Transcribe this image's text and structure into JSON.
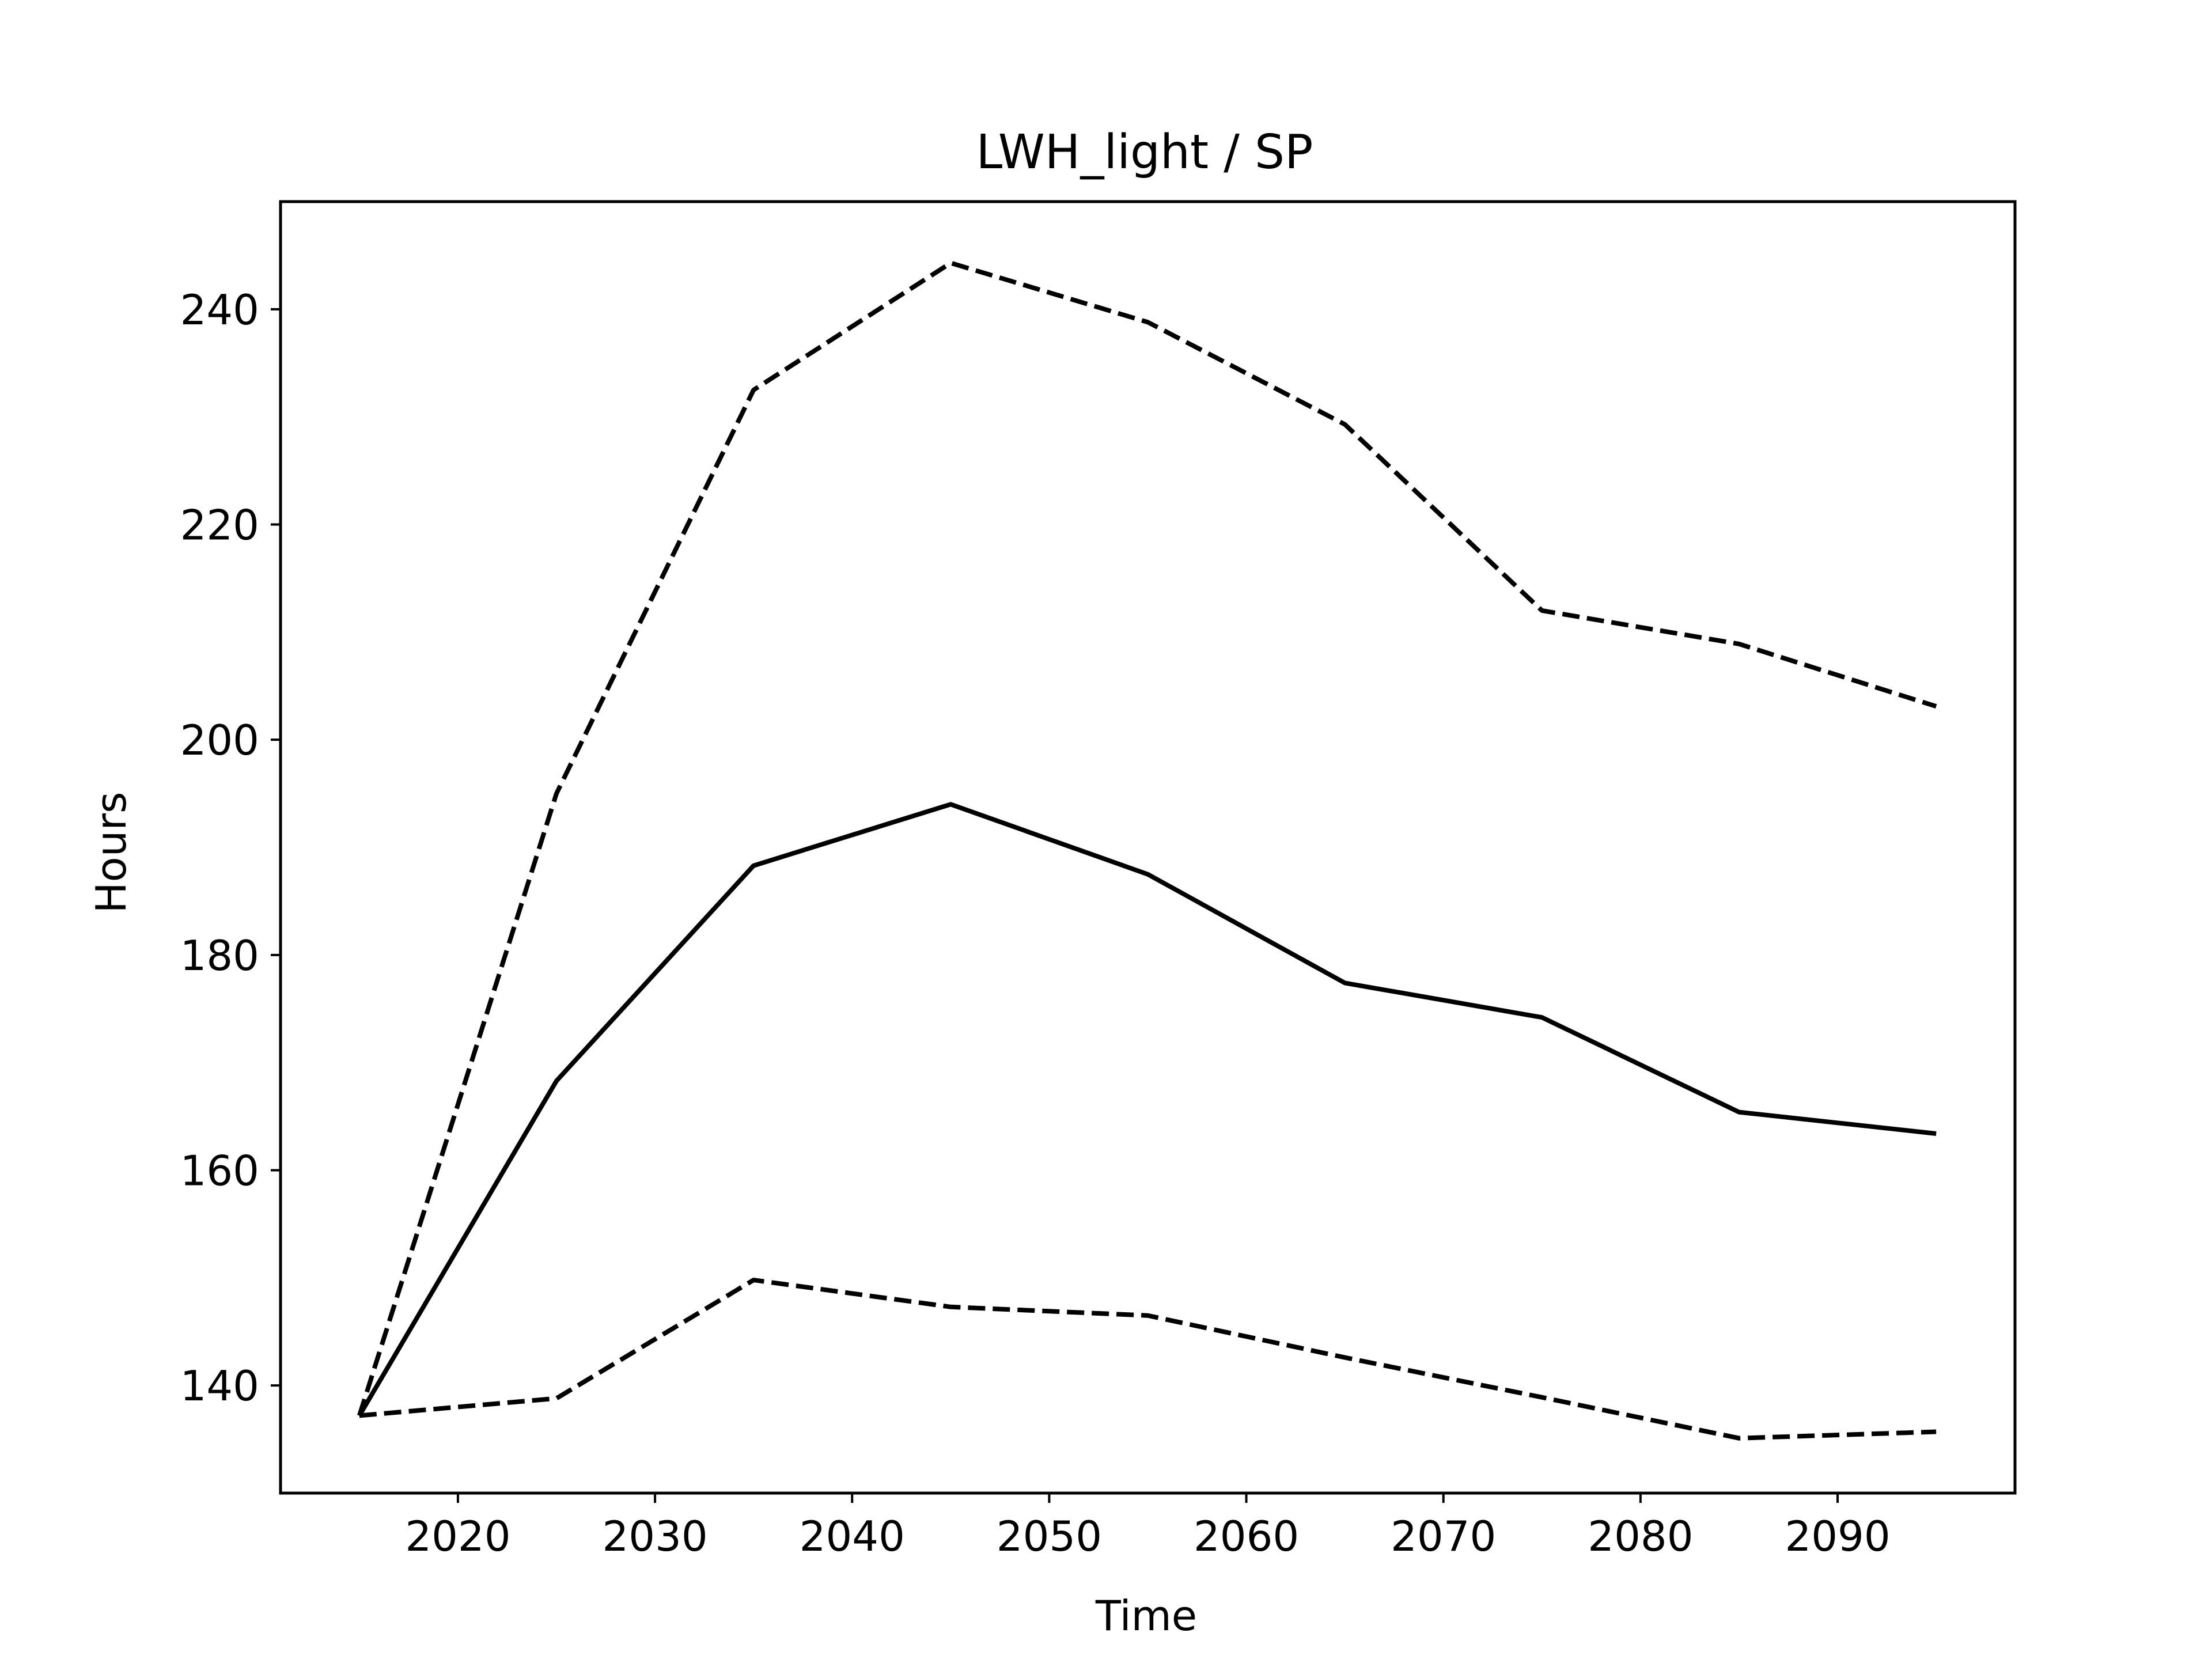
{
  "chart_data": {
    "type": "line",
    "title": "LWH_light / SP",
    "xlabel": "Time",
    "ylabel": "Hours",
    "xlim": [
      2011,
      2099
    ],
    "ylim": [
      130,
      250
    ],
    "xticks": [
      2020,
      2030,
      2040,
      2050,
      2060,
      2070,
      2080,
      2090
    ],
    "yticks": [
      140,
      160,
      180,
      200,
      220,
      240
    ],
    "x": [
      2015,
      2025,
      2035,
      2045,
      2055,
      2065,
      2075,
      2085,
      2095
    ],
    "grid": false,
    "legend": "none",
    "series": [
      {
        "style": "solid",
        "color": "#000000",
        "values": [
          137.2,
          168.3,
          188.3,
          194.0,
          187.5,
          177.4,
          174.2,
          165.4,
          163.4
        ]
      },
      {
        "style": "dashed",
        "color": "#000000",
        "values": [
          137.2,
          195.0,
          232.5,
          244.3,
          238.8,
          229.3,
          212.0,
          208.9,
          203.1
        ]
      },
      {
        "style": "dashed",
        "color": "#000000",
        "values": [
          137.2,
          138.8,
          149.8,
          147.3,
          146.5,
          142.6,
          138.9,
          135.1,
          135.7
        ]
      }
    ]
  }
}
